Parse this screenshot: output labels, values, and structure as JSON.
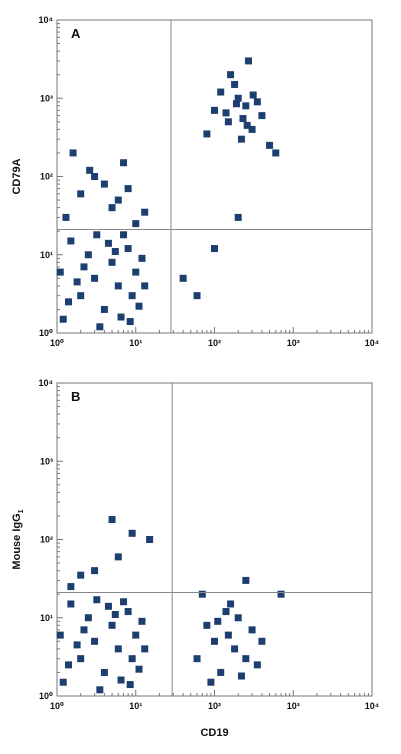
{
  "chart_data": [
    {
      "type": "scatter",
      "panel_label": "A",
      "ylabel": "CD79A",
      "xlog": true,
      "ylog": true,
      "color": "#1c3f70",
      "xlim": [
        1,
        10000
      ],
      "ylim": [
        1,
        10000
      ],
      "xticks": [
        {
          "value": 1,
          "label": "10⁰"
        },
        {
          "value": 10,
          "label": "10¹"
        },
        {
          "value": 100,
          "label": "10²"
        },
        {
          "value": 1000,
          "label": "10³"
        },
        {
          "value": 10000,
          "label": "10⁴"
        }
      ],
      "yticks": [
        {
          "value": 1,
          "label": "10⁰"
        },
        {
          "value": 10,
          "label": "10¹"
        },
        {
          "value": 100,
          "label": "10²"
        },
        {
          "value": 1000,
          "label": "10³"
        },
        {
          "value": 10000,
          "label": "10⁴"
        }
      ],
      "quadrant_x": 28,
      "quadrant_y": 21,
      "x": [
        1.2,
        2,
        3,
        4,
        5,
        6,
        8,
        10,
        1.5,
        2.5,
        3.5,
        7,
        9,
        12,
        1.1,
        1.4,
        2.2,
        4.5,
        6.5,
        11,
        1.8,
        3.2,
        5.5,
        8.5,
        13,
        1.3,
        2,
        3,
        5,
        7,
        10,
        1.6,
        4,
        6,
        13,
        2.6,
        8,
        100,
        150,
        200,
        250,
        300,
        400,
        180,
        220,
        120,
        350,
        500,
        160,
        270,
        80,
        600,
        140,
        230,
        310,
        190,
        260,
        40,
        60,
        100,
        200
      ],
      "values": [
        1.5,
        3,
        5,
        2,
        8,
        4,
        12,
        6,
        15,
        10,
        1.2,
        18,
        3,
        9,
        6,
        2.5,
        7,
        14,
        1.6,
        2.2,
        4.5,
        18,
        11,
        1.4,
        4,
        30,
        60,
        100,
        40,
        150,
        25,
        200,
        80,
        50,
        35,
        120,
        70,
        700,
        500,
        1000,
        800,
        400,
        600,
        1500,
        300,
        1200,
        900,
        250,
        2000,
        3000,
        350,
        200,
        650,
        550,
        1100,
        850,
        450,
        5,
        3,
        12,
        30
      ]
    },
    {
      "type": "scatter",
      "panel_label": "B",
      "ylabel": "Mouse IgG",
      "ylabel_sub": "1",
      "xlabel": "CD19",
      "xlog": true,
      "ylog": true,
      "color": "#1c3f70",
      "xlim": [
        1,
        10000
      ],
      "ylim": [
        1,
        10000
      ],
      "xticks": [
        {
          "value": 1,
          "label": "10⁰"
        },
        {
          "value": 10,
          "label": "10¹"
        },
        {
          "value": 100,
          "label": "10²"
        },
        {
          "value": 1000,
          "label": "10³"
        },
        {
          "value": 10000,
          "label": "10⁴"
        }
      ],
      "yticks": [
        {
          "value": 1,
          "label": "10⁰"
        },
        {
          "value": 10,
          "label": "10¹"
        },
        {
          "value": 100,
          "label": "10²"
        },
        {
          "value": 1000,
          "label": "10³"
        },
        {
          "value": 10000,
          "label": "10⁴"
        }
      ],
      "quadrant_x": 29,
      "quadrant_y": 21,
      "x": [
        1.2,
        2,
        3,
        4,
        5,
        6,
        8,
        10,
        1.5,
        2.5,
        3.5,
        7,
        9,
        12,
        1.1,
        1.4,
        2.2,
        4.5,
        6.5,
        11,
        1.8,
        3.2,
        5.5,
        8.5,
        13,
        60,
        80,
        100,
        120,
        150,
        180,
        200,
        250,
        300,
        400,
        90,
        140,
        220,
        160,
        110,
        350,
        70,
        1.5,
        3,
        6,
        9,
        15,
        2,
        5,
        250,
        700
      ],
      "values": [
        1.5,
        3,
        5,
        2,
        8,
        4,
        12,
        6,
        15,
        10,
        1.2,
        16,
        3,
        9,
        6,
        2.5,
        7,
        14,
        1.6,
        2.2,
        4.5,
        17,
        11,
        1.4,
        4,
        3,
        8,
        5,
        2,
        6,
        4,
        10,
        3,
        7,
        5,
        1.5,
        12,
        1.8,
        15,
        9,
        2.5,
        20,
        25,
        40,
        60,
        120,
        100,
        35,
        180,
        30,
        20
      ]
    }
  ]
}
